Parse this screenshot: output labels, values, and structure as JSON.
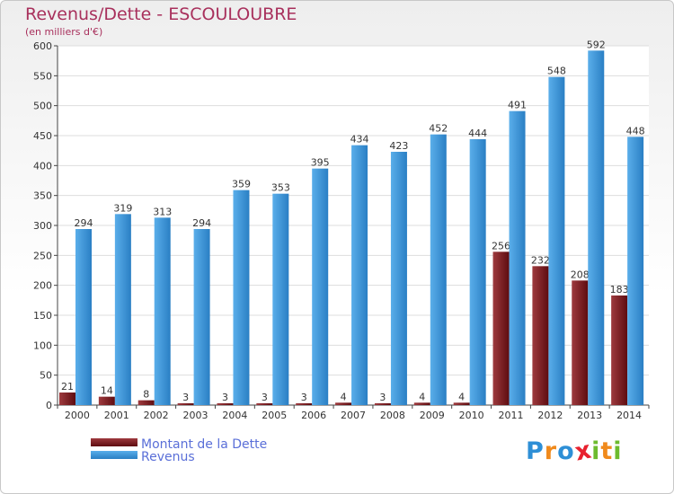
{
  "colors": {
    "title": "#a8305c",
    "legend_text": "#5a6fd8",
    "dette": "#7a1a1e",
    "revenus": "#3b96dc"
  },
  "logo": {
    "letters": [
      "P",
      "r",
      "o",
      "x",
      "i",
      "t",
      "i"
    ],
    "colors": [
      "#2e8fd6",
      "#f08a1c",
      "#2e8fd6",
      "#e8212e",
      "#6cbb2e",
      "#f08a1c",
      "#6cbb2e"
    ]
  },
  "chart_data": {
    "type": "bar",
    "title": "Revenus/Dette - ESCOULOUBRE",
    "subtitle": "(en milliers d'€)",
    "categories": [
      "2000",
      "2001",
      "2002",
      "2003",
      "2004",
      "2005",
      "2006",
      "2007",
      "2008",
      "2009",
      "2010",
      "2011",
      "2012",
      "2013",
      "2014"
    ],
    "series": [
      {
        "name": "Montant de la Dette",
        "values": [
          21,
          14,
          8,
          3,
          3,
          3,
          3,
          4,
          3,
          4,
          4,
          256,
          232,
          208,
          183
        ]
      },
      {
        "name": "Revenus",
        "values": [
          294,
          319,
          313,
          294,
          359,
          353,
          395,
          434,
          423,
          452,
          444,
          491,
          548,
          592,
          448
        ]
      }
    ],
    "yticks": [
      0,
      50,
      100,
      150,
      200,
      250,
      300,
      350,
      400,
      450,
      500,
      550,
      600
    ],
    "ylim": [
      0,
      600
    ],
    "grid": true,
    "legend_position": "bottom-left"
  }
}
